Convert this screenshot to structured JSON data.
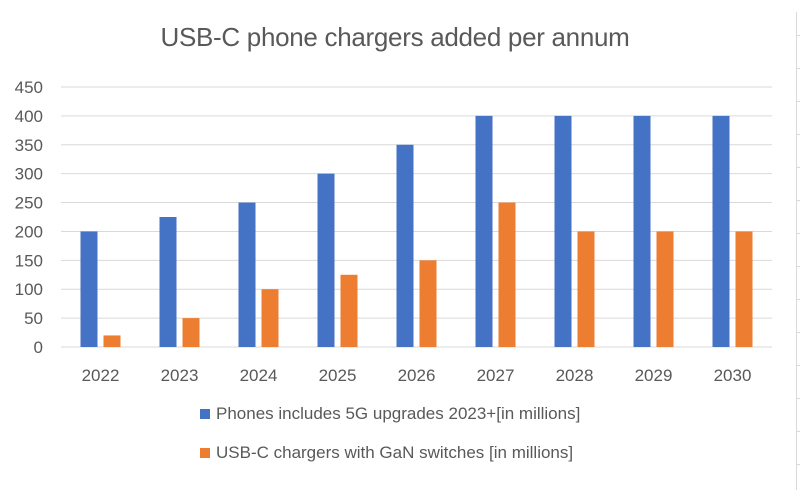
{
  "chart_data": {
    "type": "bar",
    "title": "USB-C phone chargers added per annum",
    "xlabel": "",
    "ylabel": "",
    "ylim": [
      0,
      450
    ],
    "yticks": [
      0,
      50,
      100,
      150,
      200,
      250,
      300,
      350,
      400,
      450
    ],
    "grid": true,
    "legend_position": "bottom",
    "categories": [
      "2022",
      "2023",
      "2024",
      "2025",
      "2026",
      "2027",
      "2028",
      "2029",
      "2030"
    ],
    "series": [
      {
        "name": "Phones includes 5G upgrades 2023+[in millions]",
        "color": "#4472C4",
        "values": [
          200,
          225,
          250,
          300,
          350,
          400,
          400,
          400,
          400
        ]
      },
      {
        "name": "USB-C chargers with GaN switches [in millions]",
        "color": "#ED7D31",
        "values": [
          20,
          50,
          100,
          125,
          150,
          250,
          200,
          200,
          200
        ]
      }
    ]
  }
}
